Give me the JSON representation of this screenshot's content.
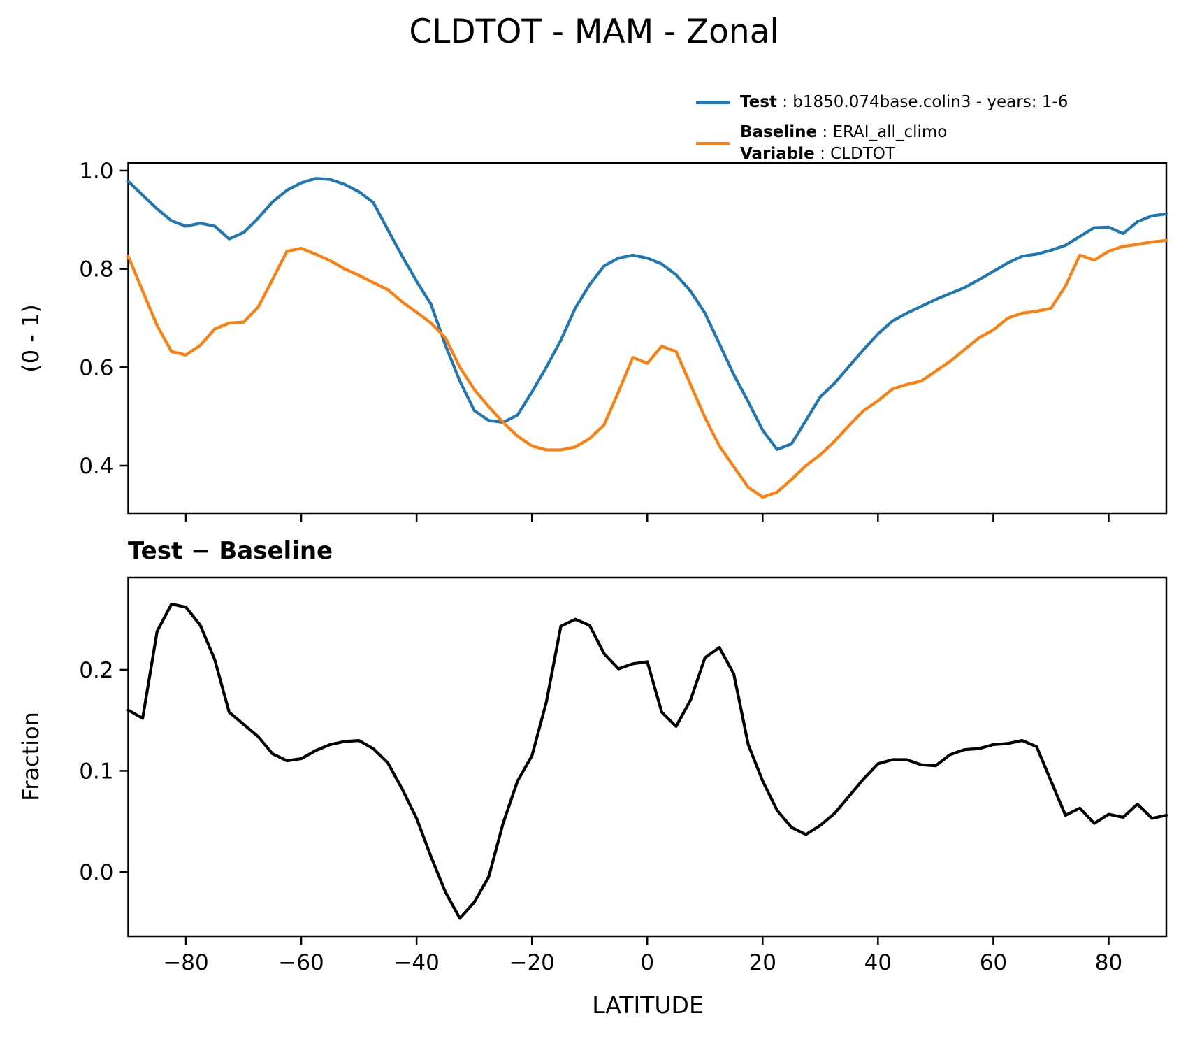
{
  "title": "CLDTOT - MAM - Zonal",
  "legend": {
    "test_label": "Test",
    "test_value": " : b1850.074base.colin3 - years: 1-6",
    "baseline_label": "Baseline",
    "baseline_value": " : ERAI_all_climo",
    "variable_label": "Variable",
    "variable_value": " : CLDTOT",
    "test_color": "#1f77b4",
    "baseline_color": "#ff7f0e"
  },
  "colors": {
    "test": "#1f77b4",
    "baseline": "#ff7f0e",
    "diff": "#000000",
    "axis": "#000000"
  },
  "xlabel": "LATITUDE",
  "chart_data": {
    "type": "line",
    "x": [
      -90,
      -87.5,
      -85,
      -82.5,
      -80,
      -77.5,
      -75,
      -72.5,
      -70,
      -67.5,
      -65,
      -62.5,
      -60,
      -57.5,
      -55,
      -52.5,
      -50,
      -47.5,
      -45,
      -42.5,
      -40,
      -37.5,
      -35,
      -32.5,
      -30,
      -27.5,
      -25,
      -22.5,
      -20,
      -17.5,
      -15,
      -12.5,
      -10,
      -7.5,
      -5,
      -2.5,
      0,
      2.5,
      5,
      7.5,
      10,
      12.5,
      15,
      17.5,
      20,
      22.5,
      25,
      27.5,
      30,
      32.5,
      35,
      37.5,
      40,
      42.5,
      45,
      47.5,
      50,
      52.5,
      55,
      57.5,
      60,
      62.5,
      65,
      67.5,
      70,
      72.5,
      75,
      77.5,
      80,
      82.5,
      85,
      87.5,
      90
    ],
    "xlim": [
      -90,
      90
    ],
    "xticks": [
      -80,
      -60,
      -40,
      -20,
      0,
      20,
      40,
      60,
      80
    ],
    "xtick_labels": [
      "−80",
      "−60",
      "−40",
      "−20",
      "0",
      "20",
      "40",
      "60",
      "80"
    ],
    "xlabel": "LATITUDE",
    "grid": false,
    "legend_position": "upper right, above axes",
    "panels": [
      {
        "name": "top",
        "ylabel": "(0 - 1)",
        "ylim": [
          0.3033,
          1.0156
        ],
        "yticks": [
          1.0,
          0.8,
          0.6,
          0.4
        ],
        "ytick_labels": [
          "1.0",
          "0.8",
          "0.6",
          "0.4"
        ],
        "series": [
          {
            "name": "Test",
            "color": "#1f77b4",
            "values": [
              0.978,
              0.95,
              0.922,
              0.898,
              0.887,
              0.893,
              0.887,
              0.861,
              0.874,
              0.903,
              0.936,
              0.96,
              0.975,
              0.984,
              0.982,
              0.972,
              0.957,
              0.935,
              0.88,
              0.826,
              0.775,
              0.728,
              0.645,
              0.572,
              0.512,
              0.492,
              0.488,
              0.503,
              0.55,
              0.6,
              0.655,
              0.72,
              0.768,
              0.806,
              0.822,
              0.828,
              0.822,
              0.81,
              0.788,
              0.755,
              0.71,
              0.648,
              0.585,
              0.53,
              0.472,
              0.433,
              0.444,
              0.492,
              0.54,
              0.568,
              0.602,
              0.636,
              0.668,
              0.694,
              0.71,
              0.724,
              0.738,
              0.75,
              0.762,
              0.778,
              0.795,
              0.812,
              0.826,
              0.83,
              0.838,
              0.848,
              0.866,
              0.884,
              0.885,
              0.872,
              0.896,
              0.908,
              0.912
            ]
          },
          {
            "name": "Baseline",
            "color": "#ff7f0e",
            "values": [
              0.826,
              0.755,
              0.685,
              0.632,
              0.625,
              0.645,
              0.678,
              0.69,
              0.692,
              0.722,
              0.778,
              0.836,
              0.842,
              0.83,
              0.817,
              0.8,
              0.787,
              0.772,
              0.758,
              0.733,
              0.712,
              0.69,
              0.66,
              0.6,
              0.555,
              0.52,
              0.488,
              0.46,
              0.44,
              0.432,
              0.432,
              0.438,
              0.455,
              0.483,
              0.55,
              0.62,
              0.608,
              0.643,
              0.632,
              0.565,
              0.498,
              0.44,
              0.398,
              0.356,
              0.336,
              0.346,
              0.372,
              0.4,
              0.422,
              0.45,
              0.482,
              0.512,
              0.532,
              0.556,
              0.565,
              0.572,
              0.592,
              0.612,
              0.636,
              0.66,
              0.676,
              0.7,
              0.71,
              0.714,
              0.72,
              0.765,
              0.828,
              0.818,
              0.836,
              0.846,
              0.85,
              0.855,
              0.858
            ]
          }
        ]
      },
      {
        "name": "difference",
        "title": "Test − Baseline",
        "ylabel": "Fraction",
        "ylim": [
          -0.0637,
          0.2913
        ],
        "yticks": [
          0.2,
          0.1,
          0.0
        ],
        "ytick_labels": [
          "0.2",
          "0.1",
          "0.0"
        ],
        "series": [
          {
            "name": "Test minus Baseline",
            "color": "#000000",
            "values": [
              0.16,
              0.152,
              0.238,
              0.265,
              0.262,
              0.244,
              0.21,
              0.158,
              0.146,
              0.134,
              0.117,
              0.11,
              0.112,
              0.12,
              0.126,
              0.129,
              0.13,
              0.122,
              0.108,
              0.082,
              0.053,
              0.015,
              -0.02,
              -0.046,
              -0.03,
              -0.005,
              0.048,
              0.09,
              0.115,
              0.168,
              0.243,
              0.25,
              0.244,
              0.216,
              0.201,
              0.206,
              0.208,
              0.158,
              0.144,
              0.17,
              0.212,
              0.222,
              0.196,
              0.126,
              0.09,
              0.061,
              0.044,
              0.037,
              0.046,
              0.058,
              0.075,
              0.092,
              0.107,
              0.111,
              0.111,
              0.106,
              0.105,
              0.116,
              0.121,
              0.122,
              0.126,
              0.127,
              0.13,
              0.124,
              0.09,
              0.056,
              0.063,
              0.048,
              0.057,
              0.054,
              0.067,
              0.053,
              0.056
            ]
          }
        ]
      }
    ]
  }
}
